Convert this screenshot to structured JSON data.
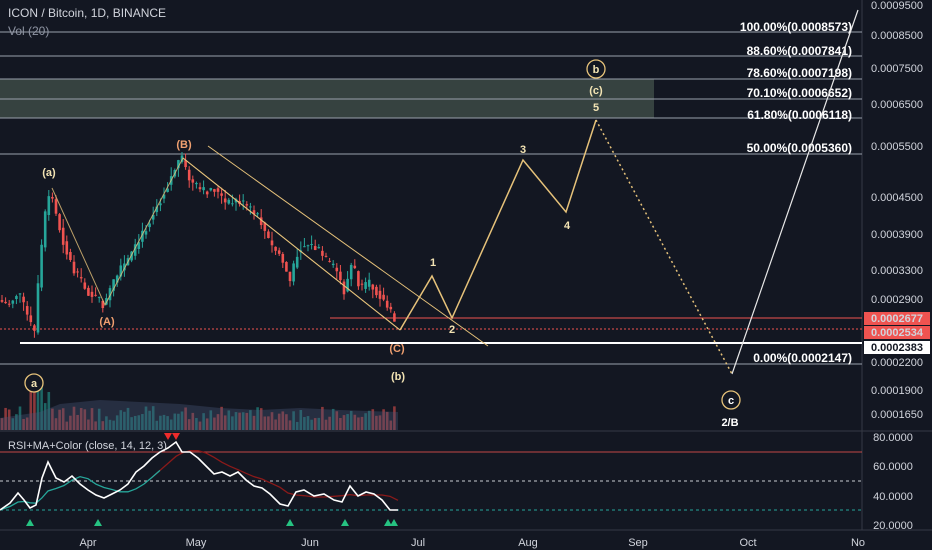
{
  "header": {
    "symbol": "ICON / Bitcoin, 1D, BINANCE",
    "volume": "Vol (20)",
    "rsi": "RSI+MA+Color (close, 14, 12, 3)"
  },
  "colors": {
    "background": "#131722",
    "up": "#26a69a",
    "down": "#ef5350",
    "wave": "#e6c27a",
    "rsi_line": "#ffffff",
    "rsi_ma": "#8b1a1a"
  },
  "price_axis": {
    "ticks": [
      "0.0009500",
      "0.0008500",
      "0.0007500",
      "0.0006500",
      "0.0005500",
      "0.0004500",
      "0.0003900",
      "0.0003300",
      "0.0002900",
      "0.0002200",
      "0.0001900",
      "0.0001650"
    ],
    "tags": [
      {
        "value": "0.0002677",
        "color": "#ef5350"
      },
      {
        "value": "0.0002534",
        "color": "#ef5350"
      },
      {
        "value": "0.0002383",
        "color": "#ffffff"
      }
    ]
  },
  "rsi_axis": {
    "ticks": [
      "80.0000",
      "60.0000",
      "40.0000",
      "20.0000"
    ]
  },
  "time_axis": {
    "labels": [
      "Apr",
      "May",
      "Jun",
      "Jul",
      "Aug",
      "Sep",
      "Oct",
      "No"
    ]
  },
  "fib_levels": [
    "100.00%(0.0008573)",
    "88.60%(0.0007841)",
    "78.60%(0.0007198)",
    "70.10%(0.0006652)",
    "61.80%(0.0006118)",
    "50.00%(0.0005360)",
    "0.00%(0.0002147)"
  ],
  "wave_labels": {
    "a_paren": "(a)",
    "b_paren_upper": "(B)",
    "a_paren_upper": "(A)",
    "c_paren_upper": "(C)",
    "b_paren": "(b)",
    "c_paren": "(c)",
    "a_circle": "a",
    "b_circle": "b",
    "c_circle": "c",
    "w1": "1",
    "w2": "2",
    "w3": "3",
    "w4": "4",
    "w5": "5",
    "two_b": "2/B"
  }
}
